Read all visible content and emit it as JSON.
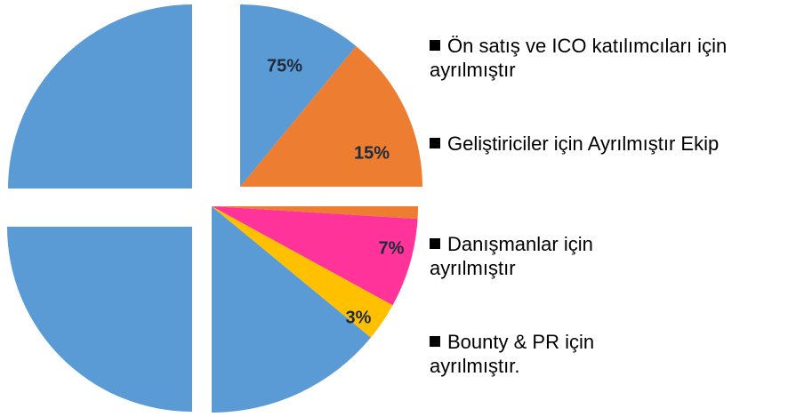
{
  "chart_data": {
    "type": "pie",
    "categories": [
      "Ön satış ve ICO katılımcıları için ayrılmıştır",
      "Geliştiriciler için Ayrılmıştır Ekip",
      "Danışmanlar için ayrılmıştır",
      "Bounty & PR için ayrılmıştır."
    ],
    "values": [
      75,
      15,
      7,
      3
    ],
    "value_labels": [
      "75%",
      "15%",
      "7%",
      "3%"
    ],
    "colors": [
      "#5b9bd5",
      "#ed7d31",
      "#ff3399",
      "#ffc000"
    ]
  }
}
